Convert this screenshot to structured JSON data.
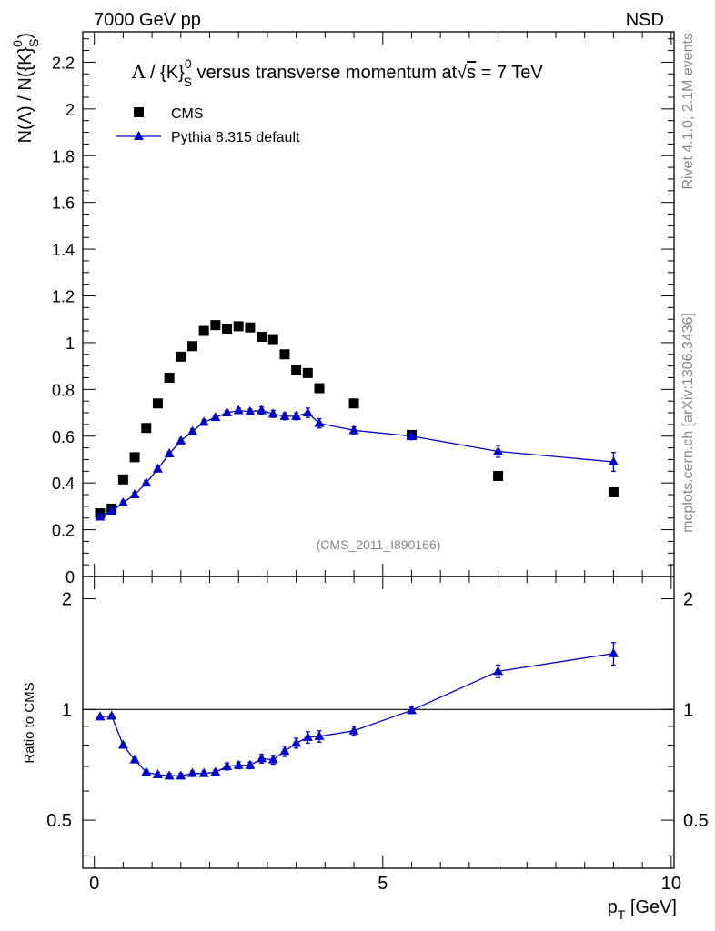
{
  "header": {
    "left": "7000 GeV pp",
    "right": "NSD"
  },
  "side_labels": {
    "rivet": "Rivet 4.1.0,  2.1M events",
    "mcplots": "mcplots.cern.ch [arXiv:1306.3436]"
  },
  "watermark": "(CMS_2011_I890166)",
  "colors": {
    "data": "#000000",
    "mc": "#0000cc"
  },
  "chart_data": [
    {
      "panel": "main",
      "type": "scatter",
      "title": "Λ / {K}S0 versus transverse momentum at √s = 7 TeV",
      "title_parts": {
        "lambda": "Λ",
        "k": " / {K}",
        "sup": "0",
        "sub": "S",
        "rest": " versus transverse momentum at",
        "sqrt": "√",
        "s": "s",
        "energy": " = 7 TeV"
      },
      "ylabel": "N(Λ) / N({K}S0)",
      "ylabel_parts": {
        "pre": "N(Λ)  /  N({K}",
        "sup": "0",
        "sub": "S",
        "post": ")"
      },
      "xlim": [
        -0.2,
        10.05
      ],
      "ylim": [
        0,
        2.33
      ],
      "yticks": [
        0,
        0.2,
        0.4,
        0.6,
        0.8,
        1,
        1.2,
        1.4,
        1.6,
        1.8,
        2,
        2.2
      ],
      "ytick_labels": [
        "0",
        "0.2",
        "0.4",
        "0.6",
        "0.8",
        "1",
        "1.2",
        "1.4",
        "1.6",
        "1.8",
        "2",
        "2.2"
      ],
      "legend": {
        "position": "top-left",
        "entries": [
          "CMS",
          "Pythia 8.315 default"
        ]
      },
      "series": [
        {
          "name": "CMS",
          "marker": "square",
          "x": [
            0.1,
            0.3,
            0.5,
            0.7,
            0.9,
            1.1,
            1.3,
            1.5,
            1.7,
            1.9,
            2.1,
            2.3,
            2.5,
            2.7,
            2.9,
            3.1,
            3.3,
            3.5,
            3.7,
            3.9,
            4.5,
            5.5,
            7.0,
            9.0
          ],
          "y": [
            0.27,
            0.29,
            0.415,
            0.51,
            0.635,
            0.74,
            0.85,
            0.94,
            0.985,
            1.05,
            1.075,
            1.06,
            1.07,
            1.065,
            1.025,
            1.015,
            0.95,
            0.885,
            0.87,
            0.805,
            0.74,
            0.605,
            0.43,
            0.36
          ]
        },
        {
          "name": "Pythia 8.315 default",
          "marker": "triangle",
          "x": [
            0.1,
            0.3,
            0.5,
            0.7,
            0.9,
            1.1,
            1.3,
            1.5,
            1.7,
            1.9,
            2.1,
            2.3,
            2.5,
            2.7,
            2.9,
            3.1,
            3.3,
            3.5,
            3.7,
            3.9,
            4.5,
            5.5,
            7.0,
            9.0
          ],
          "y": [
            0.255,
            0.28,
            0.315,
            0.35,
            0.4,
            0.46,
            0.525,
            0.58,
            0.62,
            0.66,
            0.68,
            0.7,
            0.71,
            0.705,
            0.71,
            0.695,
            0.685,
            0.685,
            0.7,
            0.655,
            0.625,
            0.6,
            0.535,
            0.49
          ],
          "yerr": [
            0.01,
            0.01,
            0.01,
            0.01,
            0.01,
            0.01,
            0.01,
            0.01,
            0.01,
            0.01,
            0.01,
            0.01,
            0.01,
            0.01,
            0.015,
            0.015,
            0.015,
            0.015,
            0.02,
            0.02,
            0.015,
            0.015,
            0.025,
            0.04
          ]
        }
      ]
    },
    {
      "panel": "ratio",
      "type": "line",
      "title": "",
      "ylabel": "Ratio to CMS",
      "xlabel": "pT [GeV]",
      "xlabel_parts": {
        "p": "p",
        "sub": "T",
        "unit": " [GeV]"
      },
      "xlim": [
        -0.2,
        10.05
      ],
      "xticks": [
        0,
        5,
        10
      ],
      "xtick_labels": [
        "0",
        "5",
        "10"
      ],
      "ylim": [
        0.37,
        2.3
      ],
      "yscale": "log",
      "yticks_labeled": [
        0.5,
        1,
        2
      ],
      "ytick_labels": [
        "0.5",
        "1",
        "2"
      ],
      "reference_line": 1,
      "series": [
        {
          "name": "Pythia 8.315 default / CMS",
          "marker": "triangle",
          "x": [
            0.1,
            0.3,
            0.5,
            0.7,
            0.9,
            1.1,
            1.3,
            1.5,
            1.7,
            1.9,
            2.1,
            2.3,
            2.5,
            2.7,
            2.9,
            3.1,
            3.3,
            3.5,
            3.7,
            3.9,
            4.5,
            5.5,
            7.0,
            9.0
          ],
          "y": [
            0.955,
            0.96,
            0.8,
            0.73,
            0.675,
            0.665,
            0.66,
            0.66,
            0.67,
            0.67,
            0.675,
            0.7,
            0.705,
            0.705,
            0.735,
            0.73,
            0.77,
            0.81,
            0.84,
            0.845,
            0.875,
            0.995,
            1.27,
            1.42
          ],
          "yerr": [
            0.01,
            0.01,
            0.01,
            0.01,
            0.01,
            0.01,
            0.01,
            0.01,
            0.01,
            0.01,
            0.01,
            0.015,
            0.015,
            0.015,
            0.02,
            0.02,
            0.025,
            0.025,
            0.03,
            0.03,
            0.025,
            0.02,
            0.05,
            0.1
          ]
        }
      ]
    }
  ]
}
